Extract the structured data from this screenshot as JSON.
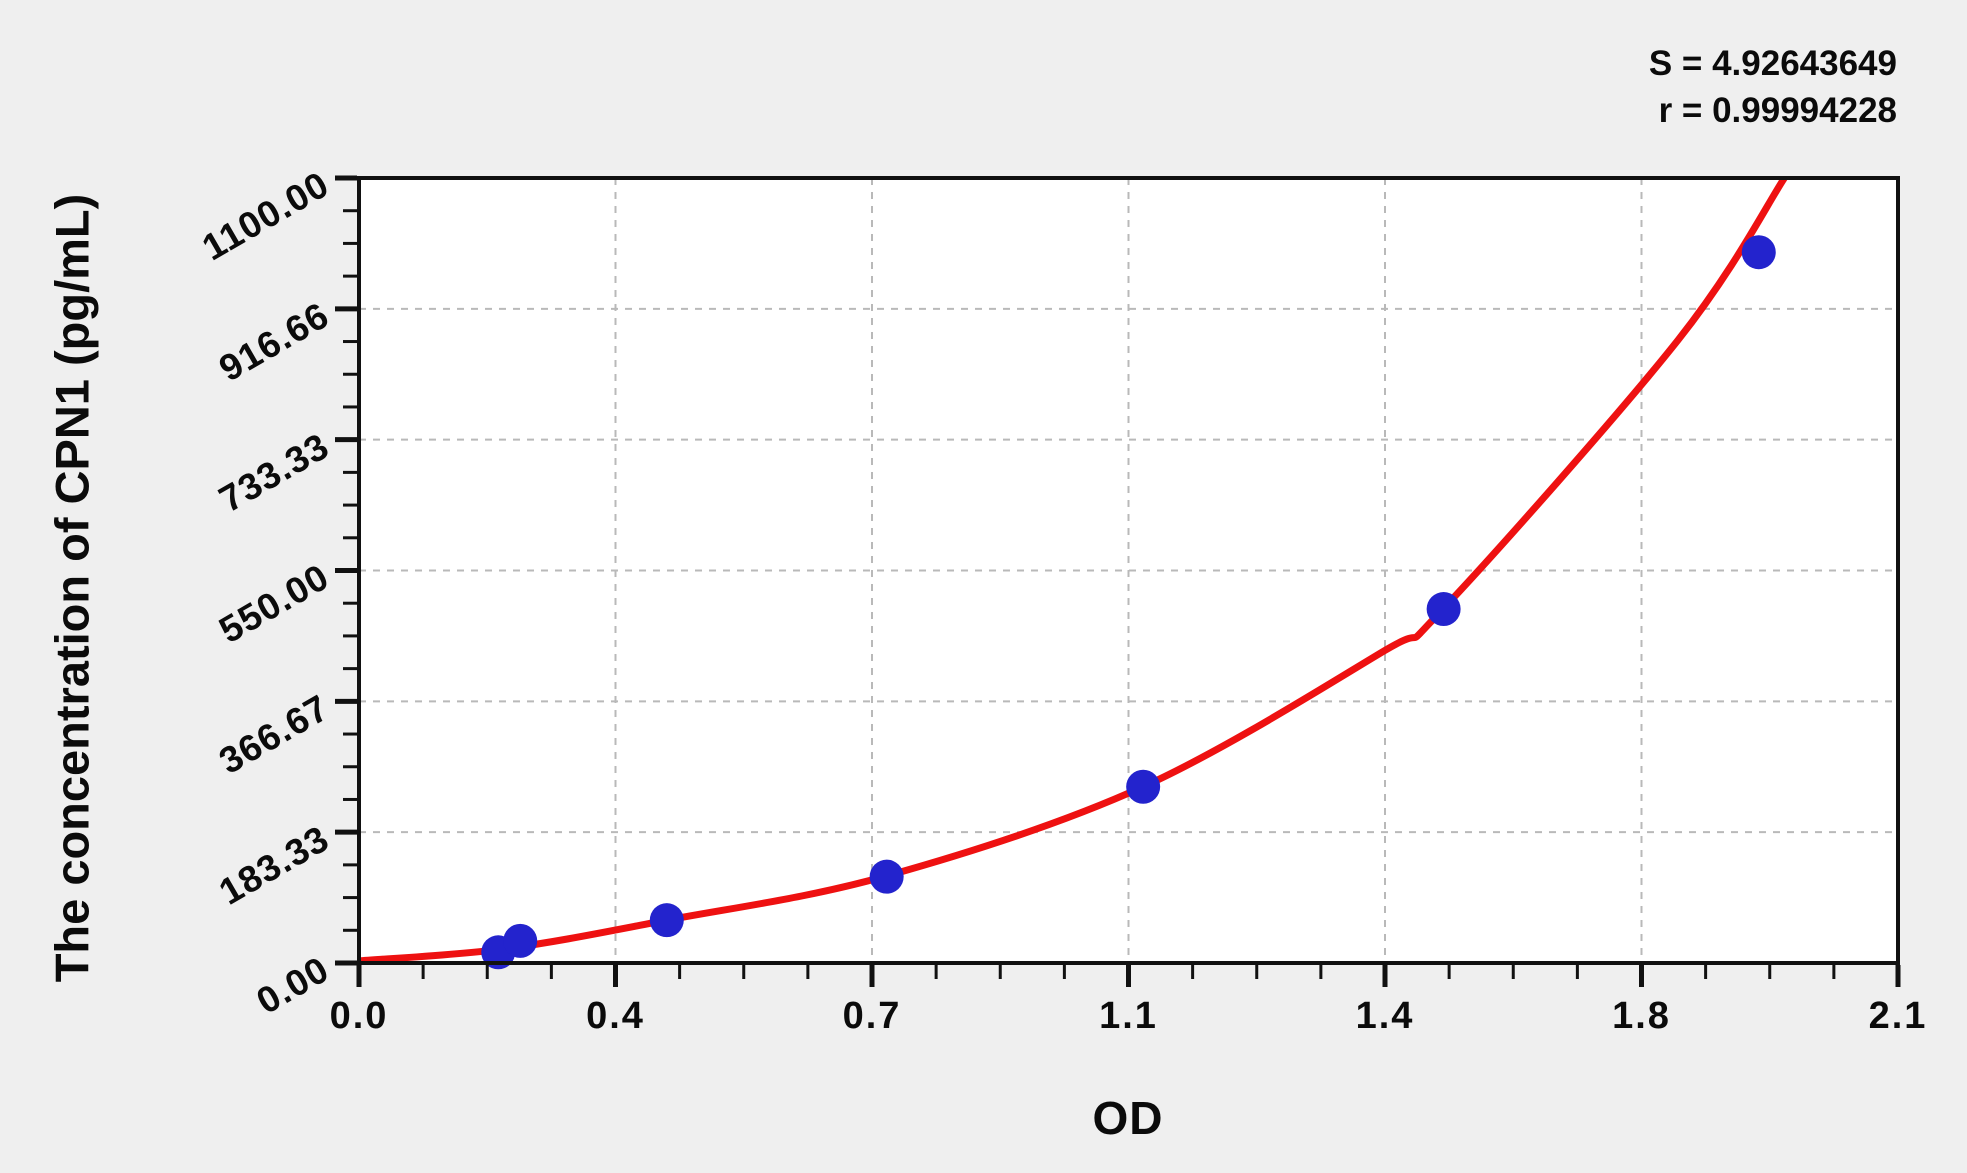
{
  "figure": {
    "background_color": "#efefef",
    "plot_background_color": "#ffffff"
  },
  "chart_data": {
    "type": "scatter",
    "subtype": "standard-curve-with-fit-line",
    "title": "",
    "xlabel": "OD",
    "ylabel": "The concentration of CPN1 (pg/mL)",
    "xlim": [
      0,
      2.1
    ],
    "ylim": [
      0,
      1100
    ],
    "x_ticks": {
      "values": [
        0,
        0.35,
        0.7,
        1.05,
        1.4,
        1.75,
        2.1
      ],
      "labels": [
        "0.0",
        "0.4",
        "0.7",
        "1.1",
        "1.4",
        "1.8",
        "2.1"
      ]
    },
    "y_ticks": {
      "values": [
        0,
        183.33,
        366.67,
        550,
        733.33,
        916.66,
        1100
      ],
      "labels": [
        "0.00",
        "183.33",
        "366.67",
        "550.00",
        "733.33",
        "916.66",
        "1100.00"
      ]
    },
    "minor_divisions_per_interval": 4,
    "grid": "dashed-at-major-ticks",
    "grid_color": "#b9b9b9",
    "annotations": [
      "S = 4.92643649",
      "r = 0.99994228"
    ],
    "series": [
      {
        "name": "standard-points",
        "type": "scatter",
        "color": "#2323cd",
        "points": [
          {
            "od": 0.19,
            "conc": 15
          },
          {
            "od": 0.22,
            "conc": 31
          },
          {
            "od": 0.42,
            "conc": 60
          },
          {
            "od": 0.72,
            "conc": 121
          },
          {
            "od": 1.07,
            "conc": 247
          },
          {
            "od": 1.48,
            "conc": 496
          },
          {
            "od": 1.91,
            "conc": 996
          }
        ]
      },
      {
        "name": "fit-curve",
        "type": "line",
        "color": "#ee1111",
        "points": [
          {
            "od": 0.0,
            "conc": 3
          },
          {
            "od": 0.2,
            "conc": 20
          },
          {
            "od": 0.42,
            "conc": 60
          },
          {
            "od": 0.72,
            "conc": 122
          },
          {
            "od": 1.07,
            "conc": 247
          },
          {
            "od": 1.4,
            "conc": 438
          },
          {
            "od": 1.48,
            "conc": 497
          },
          {
            "od": 1.8,
            "conc": 873
          },
          {
            "od": 1.945,
            "conc": 1100
          }
        ]
      }
    ]
  }
}
